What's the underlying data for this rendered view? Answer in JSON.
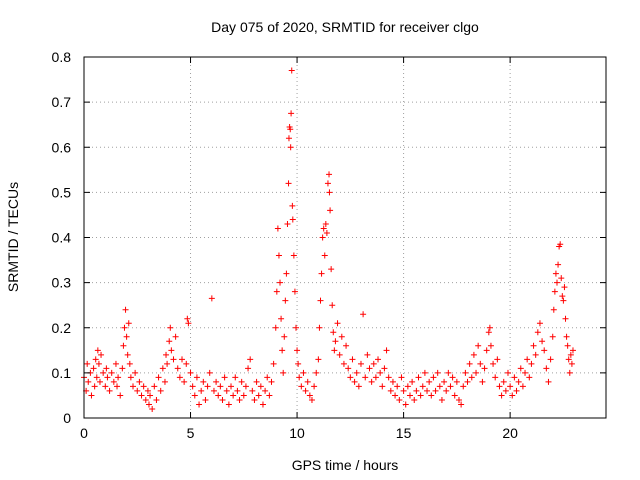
{
  "chart_data": {
    "type": "scatter",
    "title": "Day 075 of 2020, SRMTID for receiver clgo",
    "xlabel": "GPS time / hours",
    "ylabel": "SRMTID / TECUs",
    "xlim": [
      0,
      24.5
    ],
    "ylim": [
      0,
      0.8
    ],
    "xticks": [
      0,
      5,
      10,
      15,
      20
    ],
    "xtick_labels": [
      "0",
      "5",
      "10",
      "15",
      "20"
    ],
    "yticks": [
      0,
      0.1,
      0.2,
      0.3,
      0.4,
      0.5,
      0.6,
      0.7,
      0.8
    ],
    "ytick_labels": [
      "0",
      "0.1",
      "0.2",
      "0.3",
      "0.4",
      "0.5",
      "0.6",
      "0.7",
      "0.8"
    ],
    "grid": true,
    "marker": "plus",
    "color": "#ff0000",
    "series": [
      {
        "name": "SRMTID",
        "points": [
          [
            0.0,
            0.09
          ],
          [
            0.1,
            0.06
          ],
          [
            0.15,
            0.12
          ],
          [
            0.2,
            0.08
          ],
          [
            0.3,
            0.1
          ],
          [
            0.35,
            0.05
          ],
          [
            0.45,
            0.11
          ],
          [
            0.5,
            0.07
          ],
          [
            0.55,
            0.13
          ],
          [
            0.6,
            0.09
          ],
          [
            0.65,
            0.15
          ],
          [
            0.7,
            0.12
          ],
          [
            0.75,
            0.08
          ],
          [
            0.8,
            0.14
          ],
          [
            0.9,
            0.1
          ],
          [
            1.0,
            0.07
          ],
          [
            1.05,
            0.11
          ],
          [
            1.1,
            0.09
          ],
          [
            1.2,
            0.06
          ],
          [
            1.3,
            0.1
          ],
          [
            1.4,
            0.08
          ],
          [
            1.5,
            0.12
          ],
          [
            1.55,
            0.07
          ],
          [
            1.6,
            0.09
          ],
          [
            1.7,
            0.05
          ],
          [
            1.8,
            0.11
          ],
          [
            1.85,
            0.16
          ],
          [
            1.9,
            0.2
          ],
          [
            1.95,
            0.24
          ],
          [
            2.0,
            0.18
          ],
          [
            2.05,
            0.14
          ],
          [
            2.1,
            0.21
          ],
          [
            2.15,
            0.12
          ],
          [
            2.2,
            0.09
          ],
          [
            2.3,
            0.07
          ],
          [
            2.4,
            0.1
          ],
          [
            2.5,
            0.06
          ],
          [
            2.6,
            0.08
          ],
          [
            2.7,
            0.05
          ],
          [
            2.8,
            0.07
          ],
          [
            2.9,
            0.04
          ],
          [
            3.0,
            0.06
          ],
          [
            3.05,
            0.03
          ],
          [
            3.1,
            0.05
          ],
          [
            3.2,
            0.02
          ],
          [
            3.3,
            0.07
          ],
          [
            3.4,
            0.04
          ],
          [
            3.5,
            0.09
          ],
          [
            3.6,
            0.06
          ],
          [
            3.7,
            0.11
          ],
          [
            3.8,
            0.08
          ],
          [
            3.85,
            0.14
          ],
          [
            3.9,
            0.12
          ],
          [
            4.0,
            0.17
          ],
          [
            4.05,
            0.2
          ],
          [
            4.1,
            0.15
          ],
          [
            4.2,
            0.13
          ],
          [
            4.3,
            0.18
          ],
          [
            4.4,
            0.11
          ],
          [
            4.5,
            0.09
          ],
          [
            4.6,
            0.13
          ],
          [
            4.7,
            0.08
          ],
          [
            4.8,
            0.12
          ],
          [
            4.85,
            0.22
          ],
          [
            4.9,
            0.21
          ],
          [
            5.0,
            0.1
          ],
          [
            5.1,
            0.07
          ],
          [
            5.2,
            0.05
          ],
          [
            5.3,
            0.09
          ],
          [
            5.4,
            0.03
          ],
          [
            5.5,
            0.06
          ],
          [
            5.6,
            0.08
          ],
          [
            5.7,
            0.04
          ],
          [
            5.8,
            0.07
          ],
          [
            5.9,
            0.1
          ],
          [
            6.0,
            0.265
          ],
          [
            6.1,
            0.06
          ],
          [
            6.2,
            0.08
          ],
          [
            6.3,
            0.05
          ],
          [
            6.4,
            0.07
          ],
          [
            6.5,
            0.04
          ],
          [
            6.6,
            0.09
          ],
          [
            6.7,
            0.06
          ],
          [
            6.8,
            0.03
          ],
          [
            6.9,
            0.07
          ],
          [
            7.0,
            0.05
          ],
          [
            7.1,
            0.09
          ],
          [
            7.2,
            0.06
          ],
          [
            7.3,
            0.04
          ],
          [
            7.4,
            0.08
          ],
          [
            7.5,
            0.05
          ],
          [
            7.6,
            0.07
          ],
          [
            7.7,
            0.11
          ],
          [
            7.8,
            0.13
          ],
          [
            7.9,
            0.06
          ],
          [
            8.0,
            0.04
          ],
          [
            8.1,
            0.08
          ],
          [
            8.2,
            0.05
          ],
          [
            8.3,
            0.07
          ],
          [
            8.4,
            0.03
          ],
          [
            8.5,
            0.06
          ],
          [
            8.6,
            0.09
          ],
          [
            8.7,
            0.05
          ],
          [
            8.8,
            0.08
          ],
          [
            8.9,
            0.12
          ],
          [
            9.0,
            0.2
          ],
          [
            9.05,
            0.28
          ],
          [
            9.1,
            0.42
          ],
          [
            9.15,
            0.36
          ],
          [
            9.2,
            0.3
          ],
          [
            9.25,
            0.22
          ],
          [
            9.3,
            0.15
          ],
          [
            9.35,
            0.1
          ],
          [
            9.4,
            0.18
          ],
          [
            9.45,
            0.26
          ],
          [
            9.5,
            0.32
          ],
          [
            9.55,
            0.43
          ],
          [
            9.6,
            0.52
          ],
          [
            9.62,
            0.62
          ],
          [
            9.65,
            0.645
          ],
          [
            9.68,
            0.64
          ],
          [
            9.7,
            0.6
          ],
          [
            9.72,
            0.675
          ],
          [
            9.75,
            0.77
          ],
          [
            9.78,
            0.47
          ],
          [
            9.8,
            0.44
          ],
          [
            9.85,
            0.36
          ],
          [
            9.9,
            0.28
          ],
          [
            9.95,
            0.2
          ],
          [
            10.0,
            0.15
          ],
          [
            10.05,
            0.12
          ],
          [
            10.1,
            0.09
          ],
          [
            10.2,
            0.07
          ],
          [
            10.3,
            0.1
          ],
          [
            10.4,
            0.06
          ],
          [
            10.5,
            0.08
          ],
          [
            10.6,
            0.05
          ],
          [
            10.7,
            0.04
          ],
          [
            10.8,
            0.07
          ],
          [
            10.9,
            0.1
          ],
          [
            11.0,
            0.13
          ],
          [
            11.05,
            0.2
          ],
          [
            11.1,
            0.26
          ],
          [
            11.15,
            0.32
          ],
          [
            11.2,
            0.4
          ],
          [
            11.25,
            0.42
          ],
          [
            11.3,
            0.36
          ],
          [
            11.35,
            0.43
          ],
          [
            11.4,
            0.41
          ],
          [
            11.45,
            0.52
          ],
          [
            11.5,
            0.54
          ],
          [
            11.52,
            0.5
          ],
          [
            11.55,
            0.46
          ],
          [
            11.6,
            0.33
          ],
          [
            11.65,
            0.25
          ],
          [
            11.7,
            0.19
          ],
          [
            11.75,
            0.15
          ],
          [
            11.8,
            0.17
          ],
          [
            11.9,
            0.21
          ],
          [
            12.0,
            0.14
          ],
          [
            12.1,
            0.18
          ],
          [
            12.2,
            0.12
          ],
          [
            12.3,
            0.16
          ],
          [
            12.4,
            0.11
          ],
          [
            12.5,
            0.09
          ],
          [
            12.6,
            0.13
          ],
          [
            12.7,
            0.08
          ],
          [
            12.8,
            0.1
          ],
          [
            12.9,
            0.07
          ],
          [
            13.0,
            0.12
          ],
          [
            13.1,
            0.23
          ],
          [
            13.2,
            0.09
          ],
          [
            13.3,
            0.14
          ],
          [
            13.4,
            0.11
          ],
          [
            13.5,
            0.08
          ],
          [
            13.6,
            0.12
          ],
          [
            13.7,
            0.09
          ],
          [
            13.8,
            0.13
          ],
          [
            13.9,
            0.1
          ],
          [
            14.0,
            0.07
          ],
          [
            14.1,
            0.11
          ],
          [
            14.2,
            0.15
          ],
          [
            14.3,
            0.09
          ],
          [
            14.4,
            0.06
          ],
          [
            14.5,
            0.08
          ],
          [
            14.6,
            0.05
          ],
          [
            14.7,
            0.07
          ],
          [
            14.8,
            0.04
          ],
          [
            14.9,
            0.09
          ],
          [
            15.0,
            0.06
          ],
          [
            15.1,
            0.03
          ],
          [
            15.2,
            0.07
          ],
          [
            15.3,
            0.05
          ],
          [
            15.4,
            0.08
          ],
          [
            15.5,
            0.04
          ],
          [
            15.6,
            0.06
          ],
          [
            15.7,
            0.09
          ],
          [
            15.8,
            0.05
          ],
          [
            15.9,
            0.07
          ],
          [
            16.0,
            0.1
          ],
          [
            16.1,
            0.06
          ],
          [
            16.2,
            0.08
          ],
          [
            16.3,
            0.05
          ],
          [
            16.4,
            0.09
          ],
          [
            16.5,
            0.06
          ],
          [
            16.6,
            0.1
          ],
          [
            16.7,
            0.07
          ],
          [
            16.8,
            0.04
          ],
          [
            16.9,
            0.08
          ],
          [
            17.0,
            0.06
          ],
          [
            17.1,
            0.1
          ],
          [
            17.2,
            0.07
          ],
          [
            17.3,
            0.09
          ],
          [
            17.4,
            0.05
          ],
          [
            17.5,
            0.08
          ],
          [
            17.6,
            0.04
          ],
          [
            17.7,
            0.03
          ],
          [
            17.8,
            0.07
          ],
          [
            17.9,
            0.1
          ],
          [
            18.0,
            0.08
          ],
          [
            18.1,
            0.12
          ],
          [
            18.2,
            0.09
          ],
          [
            18.3,
            0.14
          ],
          [
            18.4,
            0.1
          ],
          [
            18.5,
            0.16
          ],
          [
            18.6,
            0.12
          ],
          [
            18.7,
            0.08
          ],
          [
            18.8,
            0.11
          ],
          [
            18.9,
            0.15
          ],
          [
            19.0,
            0.19
          ],
          [
            19.05,
            0.2
          ],
          [
            19.1,
            0.16
          ],
          [
            19.2,
            0.12
          ],
          [
            19.3,
            0.09
          ],
          [
            19.4,
            0.13
          ],
          [
            19.5,
            0.07
          ],
          [
            19.6,
            0.05
          ],
          [
            19.7,
            0.08
          ],
          [
            19.8,
            0.06
          ],
          [
            19.9,
            0.1
          ],
          [
            20.0,
            0.07
          ],
          [
            20.1,
            0.05
          ],
          [
            20.2,
            0.09
          ],
          [
            20.3,
            0.06
          ],
          [
            20.4,
            0.08
          ],
          [
            20.5,
            0.11
          ],
          [
            20.6,
            0.07
          ],
          [
            20.7,
            0.1
          ],
          [
            20.8,
            0.13
          ],
          [
            20.9,
            0.09
          ],
          [
            21.0,
            0.12
          ],
          [
            21.1,
            0.16
          ],
          [
            21.2,
            0.14
          ],
          [
            21.3,
            0.19
          ],
          [
            21.4,
            0.21
          ],
          [
            21.5,
            0.17
          ],
          [
            21.6,
            0.15
          ],
          [
            21.7,
            0.11
          ],
          [
            21.8,
            0.08
          ],
          [
            21.9,
            0.13
          ],
          [
            22.0,
            0.18
          ],
          [
            22.05,
            0.24
          ],
          [
            22.1,
            0.28
          ],
          [
            22.15,
            0.32
          ],
          [
            22.2,
            0.3
          ],
          [
            22.25,
            0.34
          ],
          [
            22.3,
            0.38
          ],
          [
            22.35,
            0.385
          ],
          [
            22.4,
            0.31
          ],
          [
            22.45,
            0.27
          ],
          [
            22.5,
            0.26
          ],
          [
            22.55,
            0.29
          ],
          [
            22.6,
            0.22
          ],
          [
            22.65,
            0.18
          ],
          [
            22.7,
            0.16
          ],
          [
            22.75,
            0.13
          ],
          [
            22.8,
            0.1
          ],
          [
            22.85,
            0.14
          ],
          [
            22.9,
            0.12
          ],
          [
            22.95,
            0.15
          ]
        ]
      }
    ]
  }
}
